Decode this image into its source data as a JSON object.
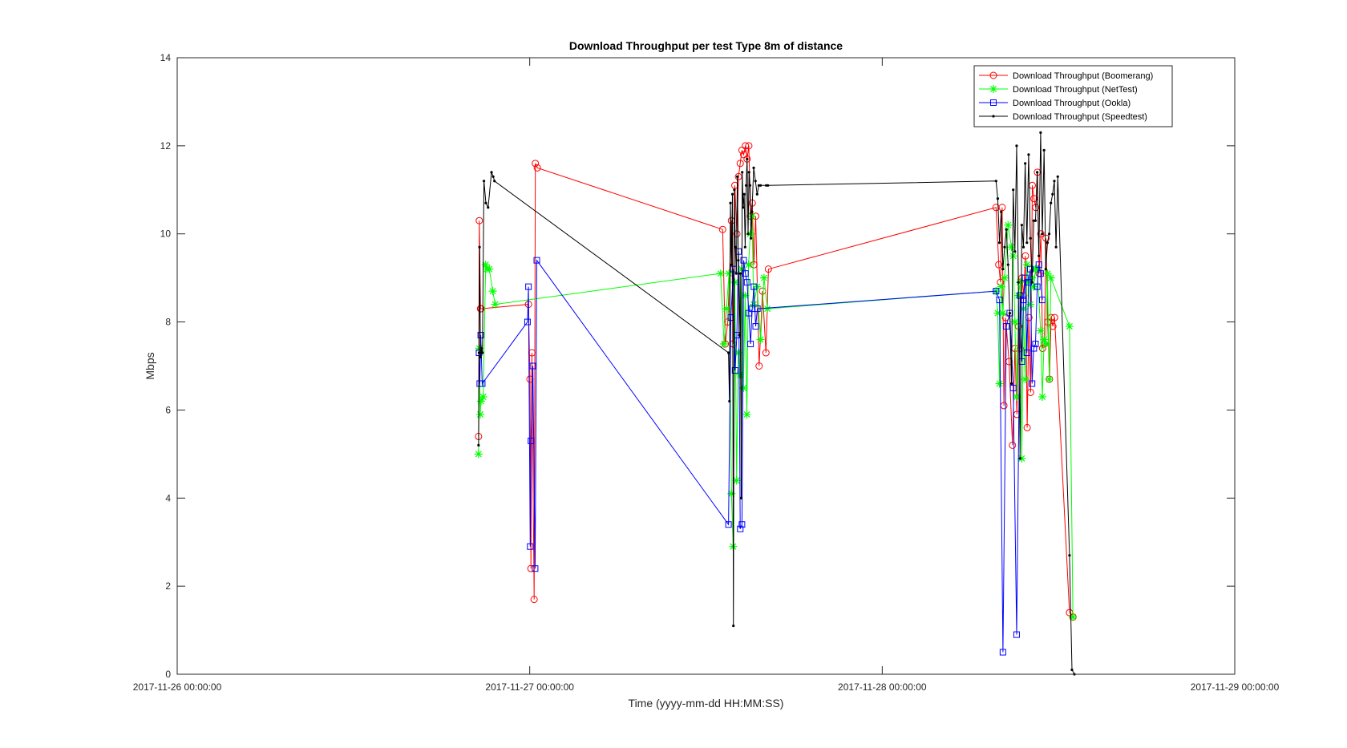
{
  "chart_data": {
    "type": "line",
    "title": "Download Throughput per test Type 8m of distance",
    "xlabel": "Time (yyyy-mm-dd HH:MM:SS)",
    "ylabel": "Mbps",
    "x_unit": "days",
    "xlim": [
      "2017-11-26 00:00:00",
      "2017-11-29 00:00:00"
    ],
    "ylim": [
      0,
      14
    ],
    "x_ticks": [
      "2017-11-26 00:00:00",
      "2017-11-27 00:00:00",
      "2017-11-28 00:00:00",
      "2017-11-29 00:00:00"
    ],
    "y_ticks": [
      0,
      2,
      4,
      6,
      8,
      10,
      12,
      14
    ],
    "grid": false,
    "legend_position": "top-right",
    "series": [
      {
        "name": "Download Throughput (Boomerang)",
        "color": "#ff0000",
        "marker": "circle",
        "x": [
          "2017-11-26 20:31",
          "2017-11-26 20:34",
          "2017-11-26 20:39",
          "2017-11-26 20:41",
          "2017-11-26 23:55",
          "2017-11-27 00:01",
          "2017-11-27 00:05",
          "2017-11-27 00:09",
          "2017-11-27 00:18",
          "2017-11-27 00:23",
          "2017-11-27 00:31",
          "2017-11-27 13:08",
          "2017-11-27 13:19",
          "2017-11-27 13:29",
          "2017-11-27 13:44",
          "2017-11-27 13:51",
          "2017-11-27 13:58",
          "2017-11-27 14:06",
          "2017-11-27 14:13",
          "2017-11-27 14:20",
          "2017-11-27 14:27",
          "2017-11-27 14:34",
          "2017-11-27 14:41",
          "2017-11-27 14:48",
          "2017-11-27 14:55",
          "2017-11-27 15:02",
          "2017-11-27 15:09",
          "2017-11-27 15:16",
          "2017-11-27 15:23",
          "2017-11-27 15:37",
          "2017-11-27 15:51",
          "2017-11-27 16:05",
          "2017-11-27 16:15",
          "2017-11-28 07:45",
          "2017-11-28 07:56",
          "2017-11-28 08:03",
          "2017-11-28 08:10",
          "2017-11-28 08:17",
          "2017-11-28 08:24",
          "2017-11-28 08:38",
          "2017-11-28 08:52",
          "2017-11-28 09:02",
          "2017-11-28 09:10",
          "2017-11-28 09:17",
          "2017-11-28 09:24",
          "2017-11-28 09:31",
          "2017-11-28 09:38",
          "2017-11-28 09:45",
          "2017-11-28 09:52",
          "2017-11-28 09:59",
          "2017-11-28 10:06",
          "2017-11-28 10:13",
          "2017-11-28 10:20",
          "2017-11-28 10:27",
          "2017-11-28 10:34",
          "2017-11-28 10:41",
          "2017-11-28 10:48",
          "2017-11-28 10:55",
          "2017-11-28 11:02",
          "2017-11-28 11:09",
          "2017-11-28 11:16",
          "2017-11-28 11:23",
          "2017-11-28 11:30",
          "2017-11-28 11:37",
          "2017-11-28 11:44",
          "2017-11-28 12:45",
          "2017-11-28 12:59"
        ],
        "y": [
          5.4,
          10.3,
          8.3,
          8.3,
          8.4,
          6.7,
          2.4,
          7.3,
          1.7,
          11.6,
          11.5,
          10.1,
          7.5,
          8.0,
          10.3,
          7.5,
          11.1,
          10.0,
          11.3,
          11.6,
          11.9,
          11.8,
          12.0,
          11.7,
          12.0,
          10.4,
          10.7,
          9.3,
          10.4,
          7.0,
          8.7,
          7.3,
          9.2,
          10.6,
          9.3,
          8.9,
          10.6,
          6.1,
          8.1,
          7.1,
          5.2,
          7.4,
          5.9,
          7.9,
          7.4,
          9.0,
          8.6,
          9.5,
          5.6,
          8.1,
          6.4,
          11.1,
          10.8,
          10.6,
          11.4,
          9.1,
          10.0,
          7.4,
          7.5,
          9.9,
          8.0,
          6.7,
          8.1,
          7.9,
          8.1,
          1.4,
          1.3
        ]
      },
      {
        "name": "Download Throughput (NetTest)",
        "color": "#00ff00",
        "marker": "asterisk",
        "x": [
          "2017-11-26 20:31",
          "2017-11-26 20:34",
          "2017-11-26 20:38",
          "2017-11-26 20:41",
          "2017-11-26 20:50",
          "2017-11-26 21:00",
          "2017-11-26 21:05",
          "2017-11-26 21:15",
          "2017-11-26 21:29",
          "2017-11-26 21:39",
          "2017-11-27 13:00",
          "2017-11-27 13:14",
          "2017-11-27 13:24",
          "2017-11-27 13:34",
          "2017-11-27 13:44",
          "2017-11-27 13:51",
          "2017-11-27 13:58",
          "2017-11-27 14:05",
          "2017-11-27 14:12",
          "2017-11-27 14:19",
          "2017-11-27 14:26",
          "2017-11-27 14:33",
          "2017-11-27 14:40",
          "2017-11-27 14:47",
          "2017-11-27 14:54",
          "2017-11-27 15:01",
          "2017-11-27 15:08",
          "2017-11-27 15:15",
          "2017-11-27 15:29",
          "2017-11-27 15:43",
          "2017-11-27 15:57",
          "2017-11-27 16:11",
          "2017-11-28 07:45",
          "2017-11-28 07:52",
          "2017-11-28 07:59",
          "2017-11-28 08:06",
          "2017-11-28 08:13",
          "2017-11-28 08:20",
          "2017-11-28 08:34",
          "2017-11-28 08:48",
          "2017-11-28 08:55",
          "2017-11-28 09:02",
          "2017-11-28 09:09",
          "2017-11-28 09:16",
          "2017-11-28 09:23",
          "2017-11-28 09:30",
          "2017-11-28 09:37",
          "2017-11-28 09:44",
          "2017-11-28 09:51",
          "2017-11-28 09:58",
          "2017-11-28 10:05",
          "2017-11-28 10:12",
          "2017-11-28 10:19",
          "2017-11-28 10:26",
          "2017-11-28 10:33",
          "2017-11-28 10:47",
          "2017-11-28 10:54",
          "2017-11-28 11:01",
          "2017-11-28 11:08",
          "2017-11-28 11:15",
          "2017-11-28 11:22",
          "2017-11-28 11:29",
          "2017-11-28 12:45",
          "2017-11-28 12:59"
        ],
        "y": [
          5.0,
          7.4,
          5.9,
          6.2,
          6.3,
          9.3,
          9.2,
          9.2,
          8.7,
          8.4,
          9.1,
          7.5,
          8.3,
          9.1,
          4.1,
          2.9,
          8.9,
          4.4,
          7.3,
          6.8,
          9.2,
          6.5,
          8.6,
          5.9,
          9.3,
          10.0,
          10.4,
          8.4,
          8.8,
          7.6,
          9.0,
          8.3,
          8.7,
          8.2,
          6.6,
          8.8,
          8.2,
          9.0,
          10.2,
          9.7,
          9.5,
          8.0,
          6.3,
          8.6,
          8.9,
          4.9,
          8.3,
          6.7,
          9.3,
          8.9,
          8.4,
          9.0,
          8.8,
          9.2,
          9.2,
          7.8,
          6.3,
          7.6,
          7.5,
          9.1,
          6.7,
          9.0,
          7.9,
          1.3
        ]
      },
      {
        "name": "Download Throughput (Ookla)",
        "color": "#0000ff",
        "marker": "square",
        "x": [
          "2017-11-26 20:33",
          "2017-11-26 20:36",
          "2017-11-26 20:40",
          "2017-11-26 20:46",
          "2017-11-26 23:51",
          "2017-11-26 23:55",
          "2017-11-27 00:02",
          "2017-11-27 00:05",
          "2017-11-27 00:13",
          "2017-11-27 00:22",
          "2017-11-27 00:29",
          "2017-11-27 13:32",
          "2017-11-27 13:42",
          "2017-11-27 13:52",
          "2017-11-27 13:59",
          "2017-11-27 14:06",
          "2017-11-27 14:13",
          "2017-11-27 14:20",
          "2017-11-27 14:27",
          "2017-11-27 14:34",
          "2017-11-27 14:41",
          "2017-11-27 14:48",
          "2017-11-27 14:55",
          "2017-11-27 15:02",
          "2017-11-27 15:09",
          "2017-11-27 15:16",
          "2017-11-27 15:23",
          "2017-11-27 15:30",
          "2017-11-28 07:45",
          "2017-11-28 07:59",
          "2017-11-28 08:13",
          "2017-11-28 08:27",
          "2017-11-28 08:41",
          "2017-11-28 08:55",
          "2017-11-28 09:09",
          "2017-11-28 09:23",
          "2017-11-28 09:30",
          "2017-11-28 09:37",
          "2017-11-28 09:44",
          "2017-11-28 09:51",
          "2017-11-28 09:58",
          "2017-11-28 10:05",
          "2017-11-28 10:12",
          "2017-11-28 10:19",
          "2017-11-28 10:26",
          "2017-11-28 10:33",
          "2017-11-28 10:40",
          "2017-11-28 10:47",
          "2017-11-28 10:54"
        ],
        "y": [
          7.3,
          6.6,
          7.7,
          6.6,
          8.0,
          8.8,
          2.9,
          5.3,
          7.0,
          2.4,
          9.4,
          3.4,
          8.1,
          9.2,
          6.9,
          7.7,
          9.6,
          3.3,
          3.4,
          9.4,
          9.1,
          8.9,
          8.2,
          7.5,
          8.3,
          8.8,
          7.9,
          8.3,
          8.7,
          8.5,
          0.5,
          7.9,
          8.2,
          6.5,
          0.9,
          8.6,
          7.1,
          8.5,
          9.0,
          7.3,
          8.9,
          9.2,
          6.6,
          7.4,
          7.5,
          8.8,
          9.3,
          9.1,
          8.5
        ]
      },
      {
        "name": "Download Throughput (Speedtest)",
        "color": "#000000",
        "marker": "dot",
        "x": [
          "2017-11-26 20:31",
          "2017-11-26 20:33",
          "2017-11-26 20:35",
          "2017-11-26 20:39",
          "2017-11-26 20:43",
          "2017-11-26 20:47",
          "2017-11-26 20:53",
          "2017-11-26 21:01",
          "2017-11-26 21:10",
          "2017-11-26 21:24",
          "2017-11-26 21:31",
          "2017-11-26 21:36",
          "2017-11-27 13:32",
          "2017-11-27 13:36",
          "2017-11-27 13:40",
          "2017-11-27 13:44",
          "2017-11-27 13:48",
          "2017-11-27 13:52",
          "2017-11-27 13:56",
          "2017-11-27 14:00",
          "2017-11-27 14:04",
          "2017-11-27 14:08",
          "2017-11-27 14:12",
          "2017-11-27 14:16",
          "2017-11-27 14:20",
          "2017-11-27 14:24",
          "2017-11-27 14:28",
          "2017-11-27 14:32",
          "2017-11-27 14:36",
          "2017-11-27 14:40",
          "2017-11-27 14:44",
          "2017-11-27 14:48",
          "2017-11-27 14:52",
          "2017-11-27 14:56",
          "2017-11-27 15:00",
          "2017-11-27 15:04",
          "2017-11-27 15:08",
          "2017-11-27 15:15",
          "2017-11-27 15:22",
          "2017-11-27 15:29",
          "2017-11-27 15:36",
          "2017-11-27 15:43",
          "2017-11-27 16:06",
          "2017-11-27 16:13",
          "2017-11-28 07:45",
          "2017-11-28 07:52",
          "2017-11-28 07:59",
          "2017-11-28 08:06",
          "2017-11-28 08:13",
          "2017-11-28 08:20",
          "2017-11-28 08:27",
          "2017-11-28 08:34",
          "2017-11-28 08:41",
          "2017-11-28 08:48",
          "2017-11-28 08:55",
          "2017-11-28 09:02",
          "2017-11-28 09:09",
          "2017-11-28 09:16",
          "2017-11-28 09:23",
          "2017-11-28 09:30",
          "2017-11-28 09:37",
          "2017-11-28 09:44",
          "2017-11-28 09:51",
          "2017-11-28 09:58",
          "2017-11-28 10:05",
          "2017-11-28 10:12",
          "2017-11-28 10:19",
          "2017-11-28 10:26",
          "2017-11-28 10:33",
          "2017-11-28 10:40",
          "2017-11-28 10:47",
          "2017-11-28 10:54",
          "2017-11-28 11:01",
          "2017-11-28 11:08",
          "2017-11-28 11:15",
          "2017-11-28 11:22",
          "2017-11-28 11:29",
          "2017-11-28 11:36",
          "2017-11-28 11:43",
          "2017-11-28 11:50",
          "2017-11-28 11:57",
          "2017-11-28 12:45",
          "2017-11-28 12:55",
          "2017-11-28 13:05"
        ],
        "y": [
          5.2,
          7.3,
          9.7,
          7.2,
          7.4,
          7.3,
          11.2,
          10.7,
          10.6,
          11.4,
          11.3,
          11.2,
          7.3,
          6.2,
          10.7,
          9.3,
          10.9,
          1.1,
          11.0,
          9.7,
          9.1,
          11.3,
          9.4,
          7.7,
          9.1,
          4.0,
          11.4,
          10.6,
          10.9,
          9.7,
          11.1,
          11.7,
          10.0,
          11.4,
          11.1,
          9.9,
          10.5,
          11.5,
          11.2,
          10.9,
          11.1,
          11.1,
          11.1,
          11.1,
          11.2,
          10.8,
          9.8,
          10.5,
          9.2,
          9.7,
          10.1,
          9.3,
          8.2,
          6.6,
          11.0,
          9.6,
          12.0,
          8.9,
          4.9,
          10.2,
          9.7,
          11.6,
          9.8,
          11.8,
          9.9,
          8.9,
          10.3,
          10.3,
          11.4,
          9.5,
          12.3,
          10.0,
          11.9,
          9.2,
          9.8,
          10.0,
          10.7,
          10.9,
          11.2,
          9.7,
          11.3,
          2.7,
          0.1,
          0.0
        ]
      }
    ]
  }
}
